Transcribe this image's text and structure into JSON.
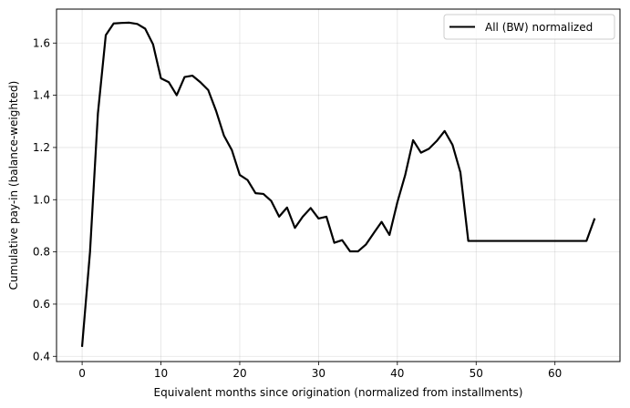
{
  "chart_data": {
    "type": "line",
    "title": "",
    "xlabel": "Equivalent months since origination (normalized from installments)",
    "ylabel": "Cumulative pay-in (balance-weighted)",
    "xlim": [
      -3.25,
      68.25
    ],
    "ylim": [
      0.38,
      1.73
    ],
    "xticks": [
      0,
      10,
      20,
      30,
      40,
      50,
      60
    ],
    "yticks": [
      0.4,
      0.6,
      0.8,
      1.0,
      1.2,
      1.4,
      1.6
    ],
    "xtick_labels": [
      "0",
      "10",
      "20",
      "30",
      "40",
      "50",
      "60"
    ],
    "ytick_labels": [
      "0.4",
      "0.6",
      "0.8",
      "1.0",
      "1.2",
      "1.4",
      "1.6"
    ],
    "grid": true,
    "legend_position": "top-right",
    "series": [
      {
        "name": "All (BW) normalized",
        "color": "#000000",
        "x": [
          0,
          1,
          2,
          3,
          4,
          5,
          6,
          7,
          8,
          9,
          10,
          11,
          12,
          13,
          14,
          15,
          16,
          17,
          18,
          19,
          20,
          21,
          22,
          23,
          24,
          25,
          26,
          27,
          28,
          29,
          30,
          31,
          32,
          33,
          34,
          35,
          36,
          37,
          38,
          39,
          40,
          41,
          42,
          43,
          44,
          45,
          46,
          47,
          48,
          49,
          50,
          51,
          52,
          53,
          54,
          55,
          56,
          57,
          58,
          59,
          60,
          61,
          62,
          63,
          64,
          65
        ],
        "y": [
          0.44,
          0.8,
          1.33,
          1.63,
          1.675,
          1.677,
          1.678,
          1.673,
          1.655,
          1.595,
          1.465,
          1.45,
          1.4,
          1.47,
          1.475,
          1.45,
          1.42,
          1.34,
          1.245,
          1.19,
          1.095,
          1.075,
          1.025,
          1.022,
          0.995,
          0.935,
          0.97,
          0.892,
          0.935,
          0.968,
          0.928,
          0.935,
          0.835,
          0.845,
          0.802,
          0.802,
          0.828,
          0.872,
          0.915,
          0.865,
          0.99,
          1.095,
          1.228,
          1.18,
          1.195,
          1.225,
          1.263,
          1.21,
          1.105,
          0.842,
          0.842,
          0.842,
          0.842,
          0.842,
          0.842,
          0.842,
          0.842,
          0.842,
          0.842,
          0.842,
          0.842,
          0.842,
          0.842,
          0.842,
          0.842,
          0.925
        ]
      }
    ]
  }
}
